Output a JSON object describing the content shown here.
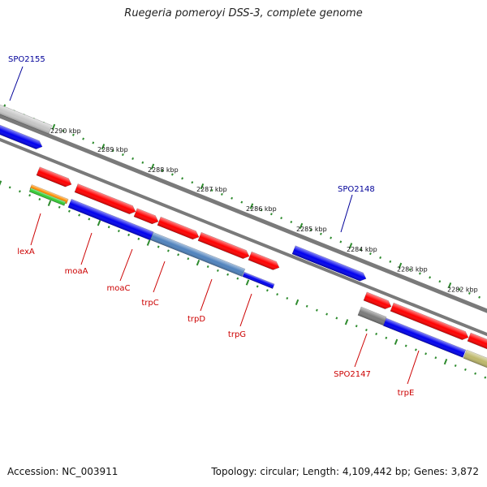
{
  "title": "Ruegeria pomeroyi DSS-3, complete genome",
  "footer": {
    "accession": "Accession: NC_003911",
    "stats": "Topology: circular; Length: 4,109,442 bp; Genes: 3,872"
  },
  "ruler": [
    "2290 kbp",
    "2289 kbp",
    "2288 kbp",
    "2287 kbp",
    "2286 kbp",
    "2285 kbp",
    "2284 kbp",
    "2283 kbp",
    "2282 kbp"
  ],
  "colors": {
    "red": "#ff0000",
    "blue": "#0000ee",
    "steelblue": "#4f82bd",
    "grey": "#7a7a7a",
    "lightgrey": "#c6c6c6",
    "orange": "#ff8c00",
    "green": "#33cc33",
    "khaki": "#bdb76b",
    "tick_green": "#2e8b2e",
    "label_red": "#cc0000",
    "label_blue": "#000099"
  },
  "labels": [
    {
      "text": "SPO2155",
      "color": "label_blue"
    },
    {
      "text": "SPO2148",
      "color": "label_blue"
    },
    {
      "text": "lexA",
      "color": "label_red"
    },
    {
      "text": "moaA",
      "color": "label_red"
    },
    {
      "text": "moaC",
      "color": "label_red"
    },
    {
      "text": "trpC",
      "color": "label_red"
    },
    {
      "text": "trpD",
      "color": "label_red"
    },
    {
      "text": "trpG",
      "color": "label_red"
    },
    {
      "text": "SPO2147",
      "color": "label_red"
    },
    {
      "text": "trpE",
      "color": "label_red"
    }
  ]
}
